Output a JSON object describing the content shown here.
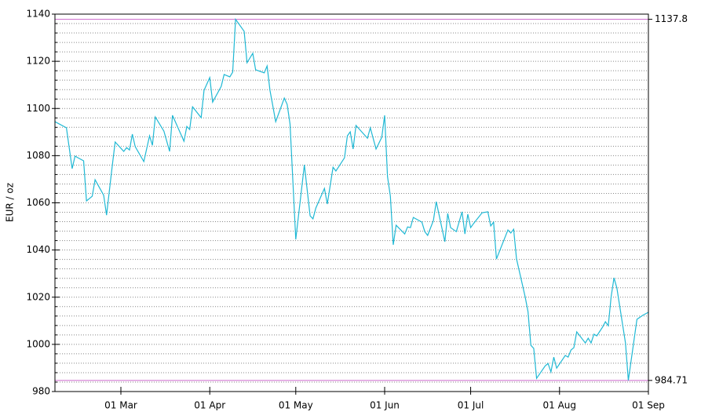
{
  "chart_data": {
    "type": "line",
    "y_label": "EUR / oz",
    "x": [
      "06 Feb",
      "10 Feb",
      "12 Feb",
      "13 Feb",
      "16 Feb",
      "17 Feb",
      "19 Feb",
      "20 Feb",
      "23 Feb",
      "24 Feb",
      "26 Feb",
      "27 Feb",
      "02 Mar",
      "03 Mar",
      "04 Mar",
      "05 Mar",
      "06 Mar",
      "09 Mar",
      "11 Mar",
      "12 Mar",
      "13 Mar",
      "16 Mar",
      "18 Mar",
      "19 Mar",
      "23 Mar",
      "24 Mar",
      "25 Mar",
      "26 Mar",
      "29 Mar",
      "30 Mar",
      "01 Apr",
      "02 Apr",
      "05 Apr",
      "06 Apr",
      "08 Apr",
      "09 Apr",
      "10 Apr",
      "13 Apr",
      "14 Apr",
      "16 Apr",
      "17 Apr",
      "20 Apr",
      "21 Apr",
      "22 Apr",
      "24 Apr",
      "27 Apr",
      "28 Apr",
      "29 Apr",
      "01 May",
      "04 May",
      "06 May",
      "07 May",
      "08 May",
      "11 May",
      "12 May",
      "14 May",
      "15 May",
      "18 May",
      "19 May",
      "20 May",
      "21 May",
      "22 May",
      "24 May",
      "26 May",
      "27 May",
      "29 May",
      "31 May",
      "01 Jun",
      "02 Jun",
      "03 Jun",
      "04 Jun",
      "05 Jun",
      "08 Jun",
      "09 Jun",
      "10 Jun",
      "11 Jun",
      "14 Jun",
      "15 Jun",
      "16 Jun",
      "18 Jun",
      "19 Jun",
      "22 Jun",
      "23 Jun",
      "24 Jun",
      "26 Jun",
      "28 Jun",
      "29 Jun",
      "30 Jun",
      "01 Jul",
      "02 Jul",
      "05 Jul",
      "07 Jul",
      "08 Jul",
      "09 Jul",
      "10 Jul",
      "14 Jul",
      "15 Jul",
      "16 Jul",
      "17 Jul",
      "20 Jul",
      "21 Jul",
      "22 Jul",
      "23 Jul",
      "24 Jul",
      "27 Jul",
      "28 Jul",
      "29 Jul",
      "30 Jul",
      "31 Jul",
      "03 Aug",
      "04 Aug",
      "05 Aug",
      "06 Aug",
      "07 Aug",
      "10 Aug",
      "11 Aug",
      "12 Aug",
      "13 Aug",
      "14 Aug",
      "16 Aug",
      "17 Aug",
      "18 Aug",
      "19 Aug",
      "20 Aug",
      "21 Aug",
      "24 Aug",
      "25 Aug",
      "28 Aug",
      "30 Aug",
      "01 Sep"
    ],
    "series": [
      {
        "color": "#1fb8d4",
        "values": [
          1094.4,
          1091.8,
          1074.5,
          1079.8,
          1077.8,
          1060.8,
          1062.8,
          1069.8,
          1063.2,
          1054.8,
          1075.8,
          1085.8,
          1081.8,
          1083.4,
          1082.4,
          1089.1,
          1083.8,
          1077.5,
          1088.4,
          1084.4,
          1096.4,
          1090.4,
          1081.8,
          1097.1,
          1086.1,
          1092.4,
          1091.1,
          1100.7,
          1096.1,
          1107.7,
          1113.1,
          1102.7,
          1109.4,
          1114.4,
          1113.4,
          1115.4,
          1137.8,
          1132.7,
          1119.4,
          1123.4,
          1116.4,
          1115.1,
          1118.0,
          1107.7,
          1094.4,
          1104.4,
          1101.7,
          1093.4,
          1044.5,
          1076.1,
          1054.5,
          1053.2,
          1057.8,
          1066.1,
          1059.5,
          1075.1,
          1073.5,
          1079.1,
          1088.4,
          1090.1,
          1082.8,
          1092.8,
          1090.1,
          1087.4,
          1091.8,
          1082.8,
          1087.8,
          1097.1,
          1071.1,
          1062.8,
          1042.2,
          1050.5,
          1046.8,
          1049.8,
          1049.5,
          1053.8,
          1051.8,
          1047.8,
          1046.2,
          1052.5,
          1060.5,
          1043.5,
          1055.5,
          1049.5,
          1047.8,
          1056.2,
          1046.8,
          1055.2,
          1049.5,
          1051.2,
          1055.8,
          1056.2,
          1050.2,
          1051.8,
          1036.2,
          1048.5,
          1047.2,
          1048.8,
          1036.2,
          1020.2,
          1013.9,
          999.6,
          998.3,
          985.6,
          990.9,
          991.9,
          988.3,
          994.6,
          989.9,
          995.3,
          994.6,
          997.6,
          998.6,
          1005.3,
          1000.6,
          1002.6,
          1000.6,
          1004.3,
          1003.6,
          1007.3,
          1009.6,
          1007.9,
          1020.2,
          1028.2,
          1023.9,
          1000.6,
          984.71,
          1010.6,
          1012.3,
          1013.6
        ]
      }
    ],
    "xlim": [
      "06 Feb",
      "01 Sep"
    ],
    "xticks": [
      "01 Mar",
      "01 Apr",
      "01 May",
      "01 Jun",
      "01 Jul",
      "01 Aug",
      "01 Sep"
    ],
    "ylim": [
      980,
      1140
    ],
    "yticks": [
      980,
      1000,
      1020,
      1040,
      1060,
      1080,
      1100,
      1120,
      1140
    ],
    "minor_yticks": [
      984,
      988,
      992,
      996,
      1004,
      1008,
      1012,
      1016,
      1024,
      1028,
      1032,
      1036,
      1044,
      1048,
      1052,
      1056,
      1064,
      1068,
      1072,
      1076,
      1084,
      1088,
      1092,
      1096,
      1104,
      1108,
      1112,
      1116,
      1124,
      1128,
      1132,
      1136
    ],
    "grid": true,
    "hlines": [
      1137.8,
      984.71
    ],
    "hline_color": "#cc66cc"
  }
}
